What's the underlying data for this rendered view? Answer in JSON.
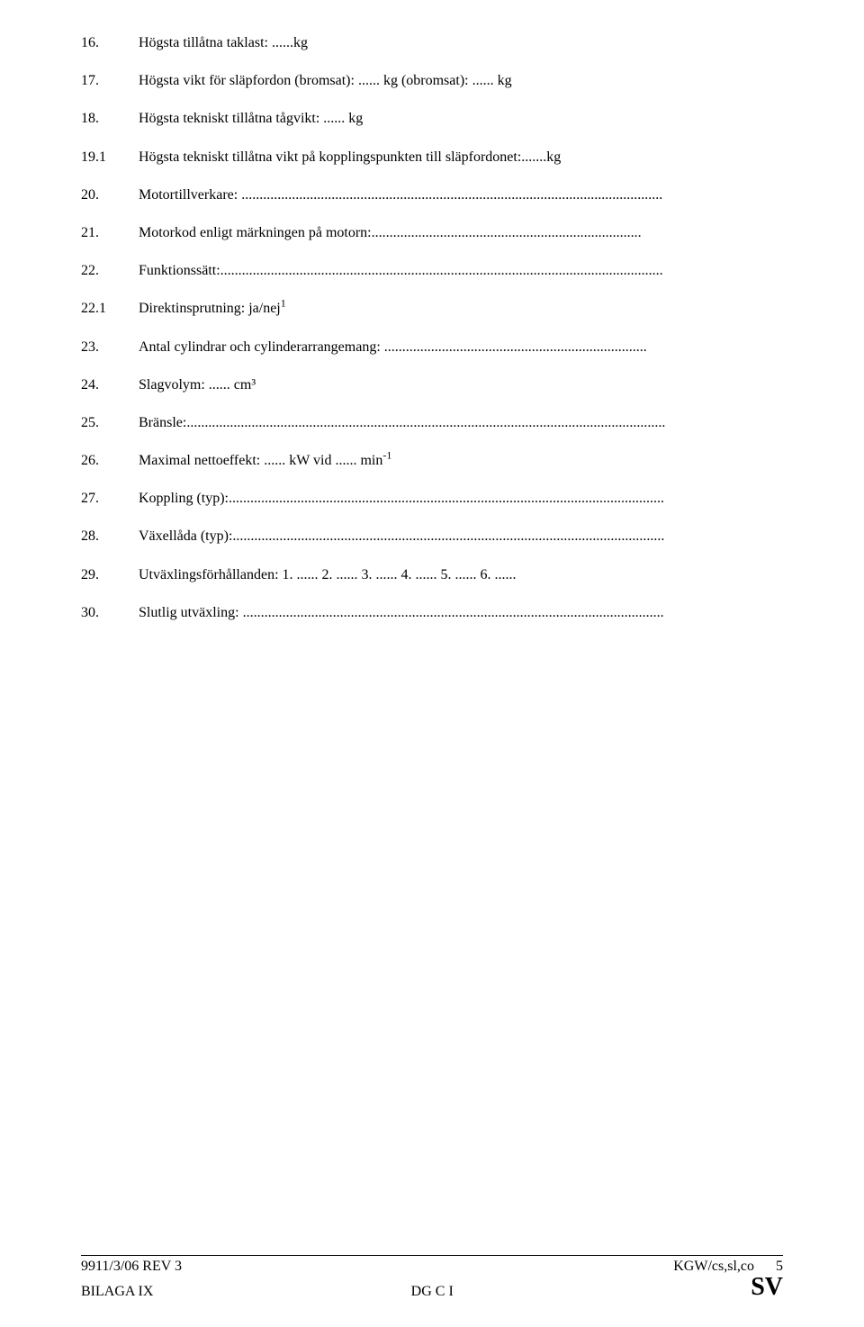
{
  "entries": [
    {
      "num": "16.",
      "text": "Högsta tillåtna taklast: ......kg"
    },
    {
      "num": "17.",
      "text": "Högsta vikt för släpfordon (bromsat): ...... kg (obromsat): ...... kg"
    },
    {
      "num": "18.",
      "text": "Högsta tekniskt tillåtna tågvikt: ...... kg"
    },
    {
      "num": "19.1",
      "text": "Högsta tekniskt tillåtna vikt på kopplingspunkten till släpfordonet:.......kg"
    },
    {
      "num": "20.",
      "text": "Motortillverkare: ....................................................................................................................."
    },
    {
      "num": "21.",
      "text": "Motorkod enligt märkningen på motorn:..........................................................................."
    },
    {
      "num": "22.",
      "text": "Funktionssätt:..........................................................................................................................."
    },
    {
      "num": "22.1",
      "text_html": "Direktinsprutning: ja/nej<span class=\"sup\">1</span>"
    },
    {
      "num": "23.",
      "text": "Antal cylindrar och cylinderarrangemang: ........................................................................."
    },
    {
      "num": "24.",
      "text": "Slagvolym: ...... cm³"
    },
    {
      "num": "25.",
      "text": "Bränsle:....................................................................................................................................."
    },
    {
      "num": "26.",
      "text_html": "Maximal nettoeffekt: ...... kW vid ...... min<span class=\"sup\">-1</span>"
    },
    {
      "num": "27.",
      "text": "Koppling (typ):........................................................................................................................."
    },
    {
      "num": "28.",
      "text": "Växellåda (typ):........................................................................................................................"
    },
    {
      "num": "29.",
      "text": "Utväxlingsförhållanden: 1. ...... 2. ...... 3. ...... 4. ...... 5. ...... 6. ......"
    },
    {
      "num": "30.",
      "text": "Slutlig utväxling: ....................................................................................................................."
    }
  ],
  "footer": {
    "ref": "9911/3/06 REV 3",
    "annex": "BILAGA IX",
    "dept": "DG C I",
    "code": "KGW/cs,sl,co",
    "page_num": "5",
    "lang": "SV"
  }
}
